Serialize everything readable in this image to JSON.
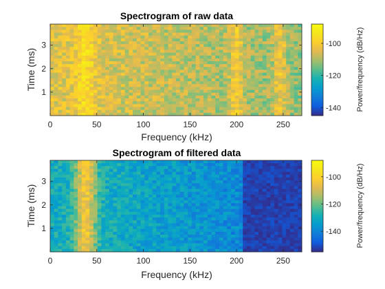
{
  "chart_data": [
    {
      "type": "heatmap",
      "title": "Spectrogram of raw data",
      "xlabel": "Frequency (kHz)",
      "ylabel": "Time (ms)",
      "xlim": [
        0,
        270
      ],
      "ylim": [
        0,
        3.9
      ],
      "xticks": [
        "0",
        "50",
        "100",
        "150",
        "200",
        "250"
      ],
      "yticks": [
        "1",
        "2",
        "3"
      ],
      "colorbar": {
        "label": "Power/frequency (dB/Hz)",
        "range": [
          -145,
          -88
        ],
        "ticks": [
          "-100",
          "-120",
          "-140"
        ],
        "colormap": "parula"
      },
      "features": {
        "background_db": -104,
        "rolloff_db_per_khz": 0.03,
        "peak_bands_khz": [
          38,
          200,
          247
        ],
        "peak_db": -94
      }
    },
    {
      "type": "heatmap",
      "title": "Spectrogram of filtered data",
      "xlabel": "Frequency (kHz)",
      "ylabel": "Time (ms)",
      "xlim": [
        0,
        270
      ],
      "ylim": [
        0,
        3.9
      ],
      "xticks": [
        "0",
        "50",
        "100",
        "150",
        "200",
        "250"
      ],
      "yticks": [
        "1",
        "2",
        "3"
      ],
      "colorbar": {
        "label": "Power/frequency (dB/Hz)",
        "range": [
          -155,
          -88
        ],
        "ticks": [
          "-100",
          "-120",
          "-140"
        ],
        "colormap": "parula"
      },
      "features": {
        "passband_db": -130,
        "stopband_start_khz": 205,
        "stopband_db": -152,
        "peak_bands_khz": [
          38
        ],
        "peak_db": -100
      }
    }
  ]
}
